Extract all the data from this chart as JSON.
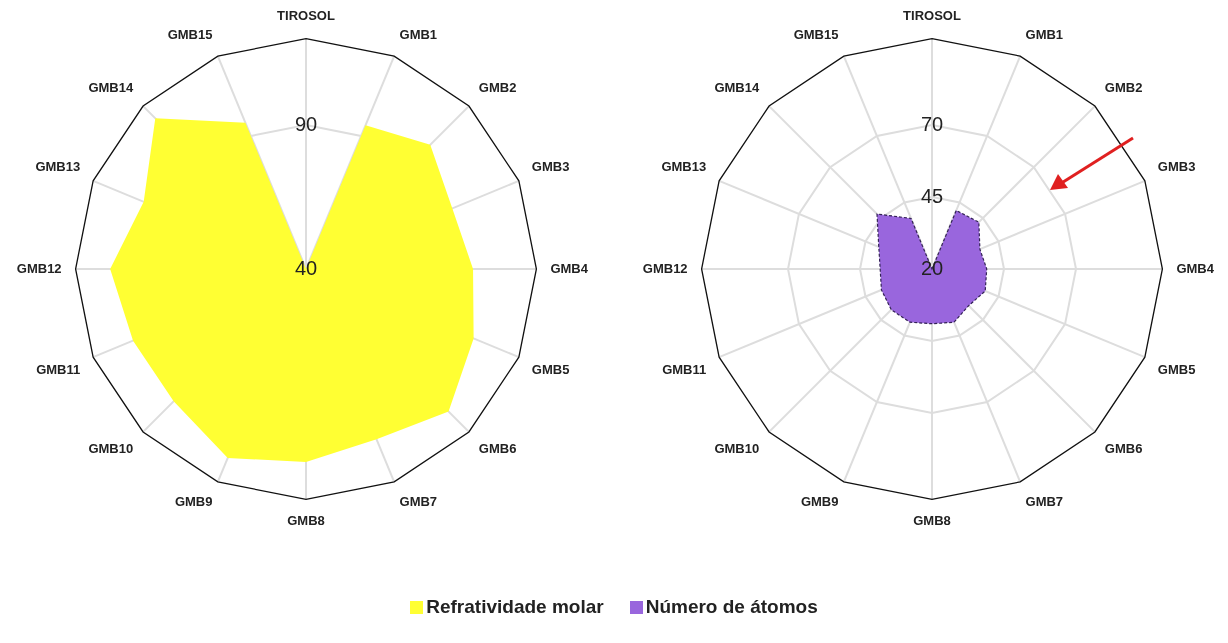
{
  "chart_data": [
    {
      "type": "radar",
      "categories": [
        "TIROSOL",
        "GMB1",
        "GMB2",
        "GMB3",
        "GMB4",
        "GMB5",
        "GMB6",
        "GMB7",
        "GMB8",
        "GMB9",
        "GMB10",
        "GMB11",
        "GMB12",
        "GMB13",
        "GMB14",
        "GMB15"
      ],
      "series": [
        {
          "name": "Refratividade molar",
          "color": "#ffff33",
          "values": [
            40,
            94,
            101,
            95,
            98,
            103,
            110,
            104,
            107,
            111,
            105,
            105,
            108,
            101,
            114,
            95
          ]
        }
      ],
      "ylim": [
        40,
        120
      ],
      "yticks": [
        40,
        90
      ],
      "grid": true,
      "legend": "bottom",
      "marker": "none"
    },
    {
      "type": "radar",
      "categories": [
        "TIROSOL",
        "GMB1",
        "GMB2",
        "GMB3",
        "GMB4",
        "GMB5",
        "GMB6",
        "GMB7",
        "GMB8",
        "GMB9",
        "GMB10",
        "GMB11",
        "GMB12",
        "GMB13",
        "GMB14",
        "GMB15"
      ],
      "series": [
        {
          "name": "Número de átomos",
          "color": "#9966dd",
          "values": [
            20,
            42,
            43,
            38,
            39,
            40,
            38,
            40,
            39,
            40,
            40,
            39,
            38,
            40,
            47,
            39
          ]
        }
      ],
      "ylim": [
        20,
        100
      ],
      "yticks": [
        20,
        45,
        70
      ],
      "grid": true,
      "legend": "bottom",
      "marker": "none",
      "line_style": "dashed"
    }
  ]
}
